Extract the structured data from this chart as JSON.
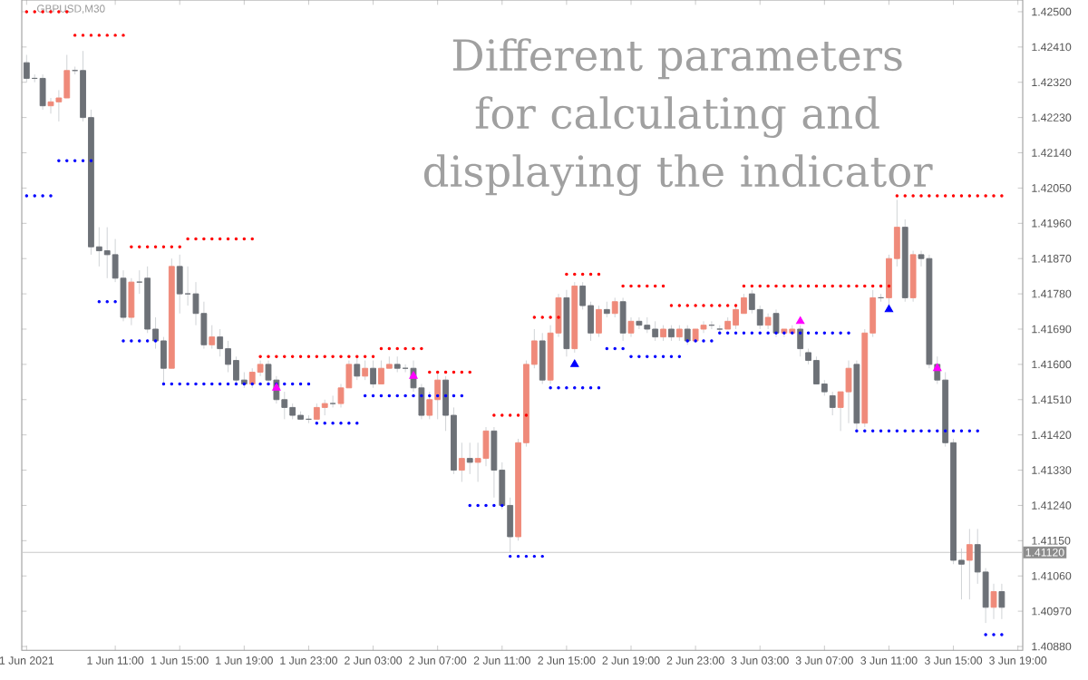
{
  "chart_data": {
    "type": "candlestick",
    "title": "Different parameters for calculating and displaying the indicator",
    "annotations": [
      "GBPUSD,M30"
    ],
    "categories": [
      "1 Jun 2021",
      null,
      null,
      null,
      null,
      null,
      null,
      null,
      null,
      null,
      null,
      "1 Jun 11:00",
      null,
      null,
      null,
      null,
      null,
      null,
      null,
      "1 Jun 15:00",
      null,
      null,
      null,
      null,
      null,
      null,
      null,
      "1 Jun 19:00",
      null,
      null,
      null,
      null,
      null,
      null,
      null,
      "1 Jun 23:00",
      null,
      null,
      null,
      null,
      null,
      null,
      null,
      "2 Jun 03:00",
      null,
      null,
      null,
      null,
      null,
      null,
      null,
      "2 Jun 07:00",
      null,
      null,
      null,
      null,
      null,
      null,
      null,
      "2 Jun 11:00",
      null,
      null,
      null,
      null,
      null,
      null,
      null,
      "2 Jun 15:00",
      null,
      null,
      null,
      null,
      null,
      null,
      null,
      "2 Jun 19:00",
      null,
      null,
      null,
      null,
      null,
      null,
      null,
      "2 Jun 23:00",
      null,
      null,
      null,
      null,
      null,
      null,
      null,
      "3 Jun 03:00",
      null,
      null,
      null,
      null,
      null,
      null,
      null,
      "3 Jun 07:00",
      null,
      null,
      null,
      null,
      null,
      null,
      null,
      "3 Jun 11:00",
      null,
      null,
      null,
      null,
      null,
      null,
      null,
      "3 Jun 15:00",
      null,
      null,
      null,
      null,
      null,
      null,
      null,
      "3 Jun 19:00"
    ],
    "ohlc": [
      [
        1.4237,
        1.4239,
        1.4232,
        1.4233
      ],
      [
        1.4233,
        1.4234,
        1.4232,
        1.4233
      ],
      [
        1.4233,
        1.4234,
        1.4225,
        1.4226
      ],
      [
        1.4226,
        1.4228,
        1.4224,
        1.4227
      ],
      [
        1.4227,
        1.423,
        1.4222,
        1.4228
      ],
      [
        1.4228,
        1.4239,
        1.4228,
        1.4235
      ],
      [
        1.4235,
        1.4236,
        1.4234,
        1.4235
      ],
      [
        1.4235,
        1.424,
        1.4222,
        1.4223
      ],
      [
        1.4223,
        1.4225,
        1.4188,
        1.419
      ],
      [
        1.419,
        1.4195,
        1.4185,
        1.4189
      ],
      [
        1.4189,
        1.4195,
        1.4182,
        1.4188
      ],
      [
        1.4188,
        1.4192,
        1.4181,
        1.4182
      ],
      [
        1.4182,
        1.4184,
        1.4171,
        1.4172
      ],
      [
        1.4172,
        1.4182,
        1.417,
        1.4181
      ],
      [
        1.4181,
        1.4184,
        1.4178,
        1.4181
      ],
      [
        1.4182,
        1.4185,
        1.4168,
        1.4169
      ],
      [
        1.4169,
        1.4172,
        1.4164,
        1.4166
      ],
      [
        1.4166,
        1.4167,
        1.4155,
        1.4159
      ],
      [
        1.4159,
        1.4187,
        1.4159,
        1.4185
      ],
      [
        1.4185,
        1.4188,
        1.4173,
        1.4178
      ],
      [
        1.4178,
        1.4185,
        1.4175,
        1.4178
      ],
      [
        1.4178,
        1.4181,
        1.417,
        1.4173
      ],
      [
        1.4173,
        1.4176,
        1.4164,
        1.4165
      ],
      [
        1.4165,
        1.417,
        1.4164,
        1.4167
      ],
      [
        1.4167,
        1.4169,
        1.4162,
        1.4164
      ],
      [
        1.4164,
        1.4166,
        1.4158,
        1.416
      ],
      [
        1.4161,
        1.4162,
        1.4155,
        1.4156
      ],
      [
        1.4156,
        1.4158,
        1.4154,
        1.4155
      ],
      [
        1.4155,
        1.4159,
        1.4154,
        1.4158
      ],
      [
        1.4158,
        1.4161,
        1.4157,
        1.416
      ],
      [
        1.416,
        1.4161,
        1.4155,
        1.4156
      ],
      [
        1.4156,
        1.4157,
        1.415,
        1.4151
      ],
      [
        1.4151,
        1.4153,
        1.4146,
        1.4149
      ],
      [
        1.4149,
        1.415,
        1.4146,
        1.4147
      ],
      [
        1.4147,
        1.4148,
        1.4146,
        1.4146
      ],
      [
        1.4146,
        1.4147,
        1.4145,
        1.4146
      ],
      [
        1.4146,
        1.415,
        1.4146,
        1.4149
      ],
      [
        1.4149,
        1.4151,
        1.4147,
        1.415
      ],
      [
        1.415,
        1.4152,
        1.4149,
        1.415
      ],
      [
        1.415,
        1.4155,
        1.4149,
        1.4154
      ],
      [
        1.4154,
        1.4161,
        1.4154,
        1.416
      ],
      [
        1.416,
        1.4162,
        1.4156,
        1.4157
      ],
      [
        1.4157,
        1.4161,
        1.4156,
        1.4159
      ],
      [
        1.4159,
        1.4161,
        1.4154,
        1.4155
      ],
      [
        1.4155,
        1.4161,
        1.4155,
        1.4159
      ],
      [
        1.4159,
        1.4162,
        1.4159,
        1.416
      ],
      [
        1.416,
        1.4162,
        1.4158,
        1.4159
      ],
      [
        1.4159,
        1.416,
        1.4158,
        1.4159
      ],
      [
        1.4159,
        1.4161,
        1.4153,
        1.4154
      ],
      [
        1.4154,
        1.4155,
        1.4146,
        1.4147
      ],
      [
        1.4147,
        1.4153,
        1.4146,
        1.4151
      ],
      [
        1.4151,
        1.4158,
        1.4146,
        1.4156
      ],
      [
        1.4156,
        1.4157,
        1.4143,
        1.4147
      ],
      [
        1.4147,
        1.4149,
        1.4132,
        1.4133
      ],
      [
        1.4133,
        1.414,
        1.413,
        1.4136
      ],
      [
        1.4136,
        1.414,
        1.4132,
        1.4135
      ],
      [
        1.4135,
        1.414,
        1.413,
        1.4136
      ],
      [
        1.4136,
        1.4144,
        1.4134,
        1.4143
      ],
      [
        1.4143,
        1.4144,
        1.4126,
        1.4133
      ],
      [
        1.4133,
        1.4135,
        1.4123,
        1.4124
      ],
      [
        1.4124,
        1.4126,
        1.4112,
        1.4116
      ],
      [
        1.4116,
        1.4141,
        1.4115,
        1.414
      ],
      [
        1.414,
        1.4161,
        1.4139,
        1.416
      ],
      [
        1.416,
        1.4169,
        1.4159,
        1.4166
      ],
      [
        1.4166,
        1.4168,
        1.4155,
        1.4156
      ],
      [
        1.4156,
        1.417,
        1.4155,
        1.4168
      ],
      [
        1.4168,
        1.4178,
        1.4167,
        1.4177
      ],
      [
        1.4177,
        1.4179,
        1.4162,
        1.4164
      ],
      [
        1.4164,
        1.4181,
        1.4163,
        1.418
      ],
      [
        1.418,
        1.4181,
        1.4174,
        1.4175
      ],
      [
        1.4175,
        1.4176,
        1.4166,
        1.4168
      ],
      [
        1.4168,
        1.4175,
        1.4167,
        1.4174
      ],
      [
        1.4174,
        1.4176,
        1.4172,
        1.4173
      ],
      [
        1.4173,
        1.4177,
        1.4172,
        1.4176
      ],
      [
        1.4176,
        1.4177,
        1.4166,
        1.4168
      ],
      [
        1.4168,
        1.4172,
        1.4167,
        1.4171
      ],
      [
        1.4171,
        1.4172,
        1.4169,
        1.417
      ],
      [
        1.417,
        1.4172,
        1.4168,
        1.4169
      ],
      [
        1.4169,
        1.4171,
        1.4166,
        1.4167
      ],
      [
        1.4167,
        1.417,
        1.4166,
        1.4169
      ],
      [
        1.4169,
        1.417,
        1.4166,
        1.4167
      ],
      [
        1.4167,
        1.417,
        1.4166,
        1.4169
      ],
      [
        1.4169,
        1.417,
        1.4165,
        1.4166
      ],
      [
        1.4166,
        1.4169,
        1.4166,
        1.4169
      ],
      [
        1.4169,
        1.4171,
        1.4168,
        1.417
      ],
      [
        1.417,
        1.4171,
        1.4169,
        1.417
      ],
      [
        1.4169,
        1.417,
        1.4168,
        1.4169
      ],
      [
        1.4169,
        1.4172,
        1.4169,
        1.4171
      ],
      [
        1.417,
        1.4175,
        1.4169,
        1.4174
      ],
      [
        1.4173,
        1.4178,
        1.4173,
        1.4177
      ],
      [
        1.4178,
        1.4179,
        1.4173,
        1.4174
      ],
      [
        1.4174,
        1.4175,
        1.4169,
        1.417
      ],
      [
        1.417,
        1.4173,
        1.4169,
        1.4172
      ],
      [
        1.4173,
        1.4174,
        1.4167,
        1.4168
      ],
      [
        1.4168,
        1.4169,
        1.4167,
        1.4169
      ],
      [
        1.4168,
        1.417,
        1.4168,
        1.4169
      ],
      [
        1.4169,
        1.417,
        1.4162,
        1.4164
      ],
      [
        1.4163,
        1.4164,
        1.416,
        1.4161
      ],
      [
        1.4161,
        1.4162,
        1.4155,
        1.4155
      ],
      [
        1.4155,
        1.4156,
        1.4152,
        1.4153
      ],
      [
        1.4152,
        1.4153,
        1.4147,
        1.4149
      ],
      [
        1.4149,
        1.4153,
        1.4143,
        1.4153
      ],
      [
        1.4153,
        1.4161,
        1.4145,
        1.4159
      ],
      [
        1.416,
        1.4161,
        1.4143,
        1.4145
      ],
      [
        1.4145,
        1.4169,
        1.4144,
        1.4168
      ],
      [
        1.4168,
        1.4179,
        1.4167,
        1.4177
      ],
      [
        1.4177,
        1.4178,
        1.4176,
        1.4177
      ],
      [
        1.4177,
        1.4188,
        1.4175,
        1.4187
      ],
      [
        1.4187,
        1.4202,
        1.4185,
        1.4195
      ],
      [
        1.4195,
        1.4197,
        1.4176,
        1.4177
      ],
      [
        1.4177,
        1.4189,
        1.4176,
        1.4188
      ],
      [
        1.4188,
        1.4189,
        1.4185,
        1.4187
      ],
      [
        1.4187,
        1.4188,
        1.4159,
        1.416
      ],
      [
        1.416,
        1.4162,
        1.4155,
        1.4156
      ],
      [
        1.4156,
        1.4158,
        1.4139,
        1.414
      ],
      [
        1.414,
        1.4141,
        1.4109,
        1.411
      ],
      [
        1.411,
        1.4113,
        1.41,
        1.4109
      ],
      [
        1.411,
        1.4118,
        1.41,
        1.4114
      ],
      [
        1.4114,
        1.4118,
        1.4104,
        1.4107
      ],
      [
        1.4107,
        1.4108,
        1.4094,
        1.4098
      ],
      [
        1.4098,
        1.4104,
        1.4095,
        1.4102
      ],
      [
        1.4102,
        1.4104,
        1.4095,
        1.4098
      ],
      null,
      null
    ],
    "series": [
      {
        "type": "scatter",
        "marker": "circle",
        "color": "#ff0000",
        "values": [
          1.425,
          1.425,
          1.425,
          1.425,
          1.425,
          1.425,
          1.4244,
          1.4244,
          1.4244,
          1.4244,
          1.4244,
          1.4244,
          1.4244,
          1.419,
          1.419,
          1.419,
          1.419,
          1.419,
          1.419,
          1.419,
          1.4192,
          1.4192,
          1.4192,
          1.4192,
          1.4192,
          1.4192,
          1.4192,
          1.4192,
          1.4192,
          1.4162,
          1.4162,
          1.4162,
          1.4162,
          1.4162,
          1.4162,
          1.4162,
          1.4162,
          1.4162,
          1.4162,
          1.4162,
          1.4162,
          1.4162,
          1.4162,
          1.4162,
          1.4164,
          1.4164,
          1.4164,
          1.4164,
          1.4164,
          1.4164,
          1.4158,
          1.4158,
          1.4158,
          1.4158,
          1.4158,
          1.4158,
          null,
          null,
          1.4147,
          1.4147,
          1.4147,
          1.4147,
          1.4147,
          1.4172,
          1.4172,
          1.4172,
          1.4172,
          1.4183,
          1.4183,
          1.4183,
          1.4183,
          1.4183,
          null,
          null,
          1.418,
          1.418,
          1.418,
          1.418,
          1.418,
          1.418,
          1.4175,
          1.4175,
          1.4175,
          1.4175,
          1.4175,
          1.4175,
          1.4175,
          1.4175,
          1.4175,
          1.418,
          1.418,
          1.418,
          1.418,
          1.418,
          1.418,
          1.418,
          1.418,
          1.418,
          1.418,
          1.418,
          1.418,
          1.418,
          1.418,
          1.418,
          1.418,
          1.418,
          1.418,
          1.418,
          1.4203,
          1.4203,
          1.4203,
          1.4203,
          1.4203,
          1.4203,
          1.4203,
          1.4203,
          1.4203,
          1.4203,
          1.4203,
          1.4203,
          1.4203,
          1.4203,
          null,
          null
        ]
      },
      {
        "type": "scatter",
        "marker": "circle",
        "color": "#0000ff",
        "values": [
          1.4203,
          1.4203,
          1.4203,
          1.4203,
          1.4212,
          1.4212,
          1.4212,
          1.4212,
          1.4212,
          1.4176,
          1.4176,
          1.4176,
          1.4166,
          1.4166,
          1.4166,
          1.4166,
          1.4166,
          1.4155,
          1.4155,
          1.4155,
          1.4155,
          1.4155,
          1.4155,
          1.4155,
          1.4155,
          1.4155,
          1.4155,
          1.4155,
          1.4155,
          1.4155,
          1.4155,
          1.4155,
          1.4155,
          1.4155,
          1.4155,
          1.4155,
          1.4145,
          1.4145,
          1.4145,
          1.4145,
          1.4145,
          1.4145,
          1.4152,
          1.4152,
          1.4152,
          1.4152,
          1.4152,
          1.4152,
          1.4152,
          1.4152,
          1.4152,
          1.4152,
          1.4152,
          1.4152,
          1.4152,
          1.4124,
          1.4124,
          1.4124,
          1.4124,
          1.4124,
          1.4111,
          1.4111,
          1.4111,
          1.4111,
          1.4111,
          1.4154,
          1.4154,
          1.4154,
          1.4154,
          1.4154,
          1.4154,
          1.4154,
          1.4164,
          1.4164,
          1.4164,
          1.4162,
          1.4162,
          1.4162,
          1.4162,
          1.4162,
          1.4162,
          1.4162,
          1.4166,
          1.4166,
          1.4166,
          1.4166,
          1.4168,
          1.4168,
          1.4168,
          1.4168,
          1.4168,
          1.4168,
          1.4168,
          1.4168,
          1.4168,
          1.4168,
          1.4168,
          1.4168,
          1.4168,
          1.4168,
          1.4168,
          1.4168,
          1.4168,
          1.4143,
          1.4143,
          1.4143,
          1.4143,
          1.4143,
          1.4143,
          1.4143,
          1.4143,
          1.4143,
          1.4143,
          1.4143,
          1.4143,
          1.4143,
          1.4143,
          1.4143,
          1.4143,
          1.4091,
          1.4091,
          1.4091,
          null,
          null
        ]
      },
      {
        "type": "scatter",
        "marker": "triangle",
        "color": "#ff00ff",
        "values": [
          null,
          null,
          null,
          null,
          null,
          null,
          null,
          null,
          null,
          null,
          null,
          null,
          null,
          null,
          null,
          null,
          null,
          null,
          null,
          null,
          null,
          null,
          null,
          null,
          null,
          null,
          null,
          null,
          null,
          null,
          null,
          1.4154,
          null,
          null,
          null,
          null,
          null,
          null,
          null,
          null,
          null,
          null,
          null,
          null,
          null,
          null,
          null,
          null,
          1.4157,
          null,
          null,
          null,
          null,
          null,
          null,
          null,
          null,
          null,
          null,
          null,
          null,
          null,
          null,
          null,
          null,
          null,
          null,
          null,
          null,
          null,
          null,
          null,
          null,
          null,
          null,
          null,
          null,
          null,
          null,
          null,
          null,
          null,
          null,
          null,
          null,
          null,
          null,
          null,
          null,
          null,
          null,
          null,
          null,
          null,
          null,
          null,
          1.4171,
          null,
          null,
          null,
          null,
          null,
          null,
          null,
          null,
          null,
          null,
          null,
          null,
          null,
          null,
          null,
          null,
          1.4159,
          null,
          null,
          null,
          null,
          null,
          null,
          null,
          null,
          null,
          null
        ]
      },
      {
        "type": "scatter",
        "marker": "triangle",
        "color": "#0000ff",
        "values": [
          null,
          null,
          null,
          null,
          null,
          null,
          null,
          null,
          null,
          null,
          null,
          null,
          null,
          null,
          null,
          null,
          null,
          null,
          null,
          null,
          null,
          null,
          null,
          null,
          null,
          null,
          null,
          null,
          null,
          null,
          null,
          null,
          null,
          null,
          null,
          null,
          null,
          null,
          null,
          null,
          null,
          null,
          null,
          null,
          null,
          null,
          null,
          null,
          null,
          null,
          null,
          null,
          null,
          null,
          null,
          null,
          null,
          null,
          null,
          null,
          null,
          null,
          null,
          null,
          null,
          null,
          null,
          null,
          1.416,
          null,
          null,
          null,
          null,
          null,
          null,
          null,
          null,
          null,
          null,
          null,
          null,
          null,
          null,
          null,
          null,
          null,
          null,
          null,
          null,
          null,
          null,
          null,
          null,
          null,
          null,
          null,
          null,
          null,
          null,
          null,
          null,
          null,
          null,
          null,
          null,
          null,
          null,
          1.4174,
          null,
          null,
          null,
          null,
          null,
          null,
          null,
          null,
          null,
          null,
          null,
          null,
          null,
          null,
          null,
          null
        ]
      }
    ],
    "ref_lines": [
      {
        "axis": "y",
        "value": 1.4112,
        "label": "1.41120",
        "color": "#c8c8c8"
      }
    ],
    "ylim": [
      1.4087,
      1.4253
    ],
    "yticks": [
      {
        "value": 1.425,
        "label": "1.42500"
      },
      {
        "value": 1.4241,
        "label": "1.42410"
      },
      {
        "value": 1.4232,
        "label": "1.42320"
      },
      {
        "value": 1.4223,
        "label": "1.42230"
      },
      {
        "value": 1.4214,
        "label": "1.42140"
      },
      {
        "value": 1.4205,
        "label": "1.42050"
      },
      {
        "value": 1.4196,
        "label": "1.41960"
      },
      {
        "value": 1.4187,
        "label": "1.41870"
      },
      {
        "value": 1.4178,
        "label": "1.41780"
      },
      {
        "value": 1.4169,
        "label": "1.41690"
      },
      {
        "value": 1.416,
        "label": "1.41600"
      },
      {
        "value": 1.4151,
        "label": "1.41510"
      },
      {
        "value": 1.4142,
        "label": "1.41420"
      },
      {
        "value": 1.4133,
        "label": "1.41330"
      },
      {
        "value": 1.4124,
        "label": "1.41240"
      },
      {
        "value": 1.4115,
        "label": "1.41150"
      },
      {
        "value": 1.4106,
        "label": "1.41060"
      },
      {
        "value": 1.4097,
        "label": "1.40970"
      },
      {
        "value": 1.4088,
        "label": "1.40880"
      }
    ]
  }
}
